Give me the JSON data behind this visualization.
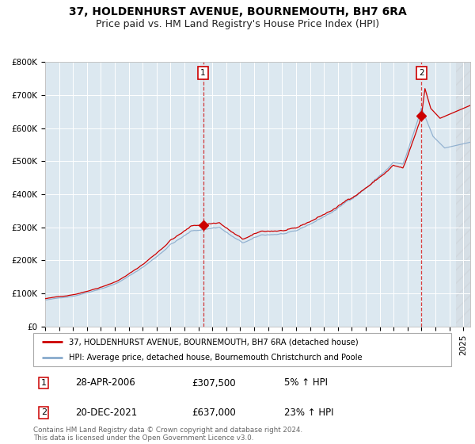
{
  "title": "37, HOLDENHURST AVENUE, BOURNEMOUTH, BH7 6RA",
  "subtitle": "Price paid vs. HM Land Registry's House Price Index (HPI)",
  "background_color": "#dce8f0",
  "grid_color": "#ffffff",
  "ylim": [
    0,
    800000
  ],
  "yticks": [
    0,
    100000,
    200000,
    300000,
    400000,
    500000,
    600000,
    700000,
    800000
  ],
  "ytick_labels": [
    "£0",
    "£100K",
    "£200K",
    "£300K",
    "£400K",
    "£500K",
    "£600K",
    "£700K",
    "£800K"
  ],
  "red_line_color": "#cc0000",
  "blue_line_color": "#88aacc",
  "sale1_date": 2006.32,
  "sale1_price": 307500,
  "sale2_date": 2021.97,
  "sale2_price": 637000,
  "sale1_label": "1",
  "sale2_label": "2",
  "legend_red": "37, HOLDENHURST AVENUE, BOURNEMOUTH, BH7 6RA (detached house)",
  "legend_blue": "HPI: Average price, detached house, Bournemouth Christchurch and Poole",
  "table_row1": [
    "1",
    "28-APR-2006",
    "£307,500",
    "5% ↑ HPI"
  ],
  "table_row2": [
    "2",
    "20-DEC-2021",
    "£637,000",
    "23% ↑ HPI"
  ],
  "footer": "Contains HM Land Registry data © Crown copyright and database right 2024.\nThis data is licensed under the Open Government Licence v3.0.",
  "title_fontsize": 10,
  "subtitle_fontsize": 9,
  "tick_fontsize": 7.5,
  "xstart": 1995,
  "xend": 2025.5
}
